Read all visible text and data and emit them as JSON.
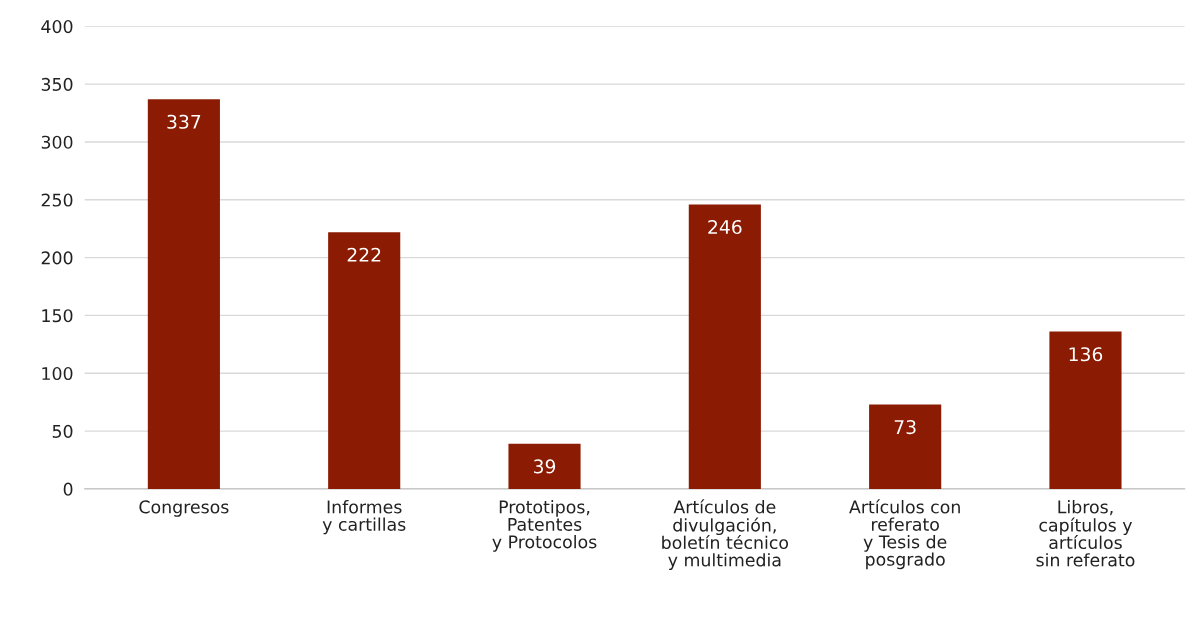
{
  "chart_data": {
    "type": "bar",
    "categories": [
      "Congresos",
      "Informes\ny cartillas",
      "Prototipos,\nPatentes\ny Protocolos",
      "Artículos de\ndivulgación,\nboletín técnico\ny multimedia",
      "Artículos con\nreferato\ny Tesis de\nposgrado",
      "Libros,\ncapítulos y\nartículos\nsin referato"
    ],
    "values": [
      337,
      222,
      39,
      246,
      73,
      136
    ],
    "color": "#8b1c03",
    "ylim": [
      0,
      400
    ],
    "yticks": [
      0,
      50,
      100,
      150,
      200,
      250,
      300,
      350,
      400
    ],
    "grid": "y",
    "data_labels": true
  }
}
